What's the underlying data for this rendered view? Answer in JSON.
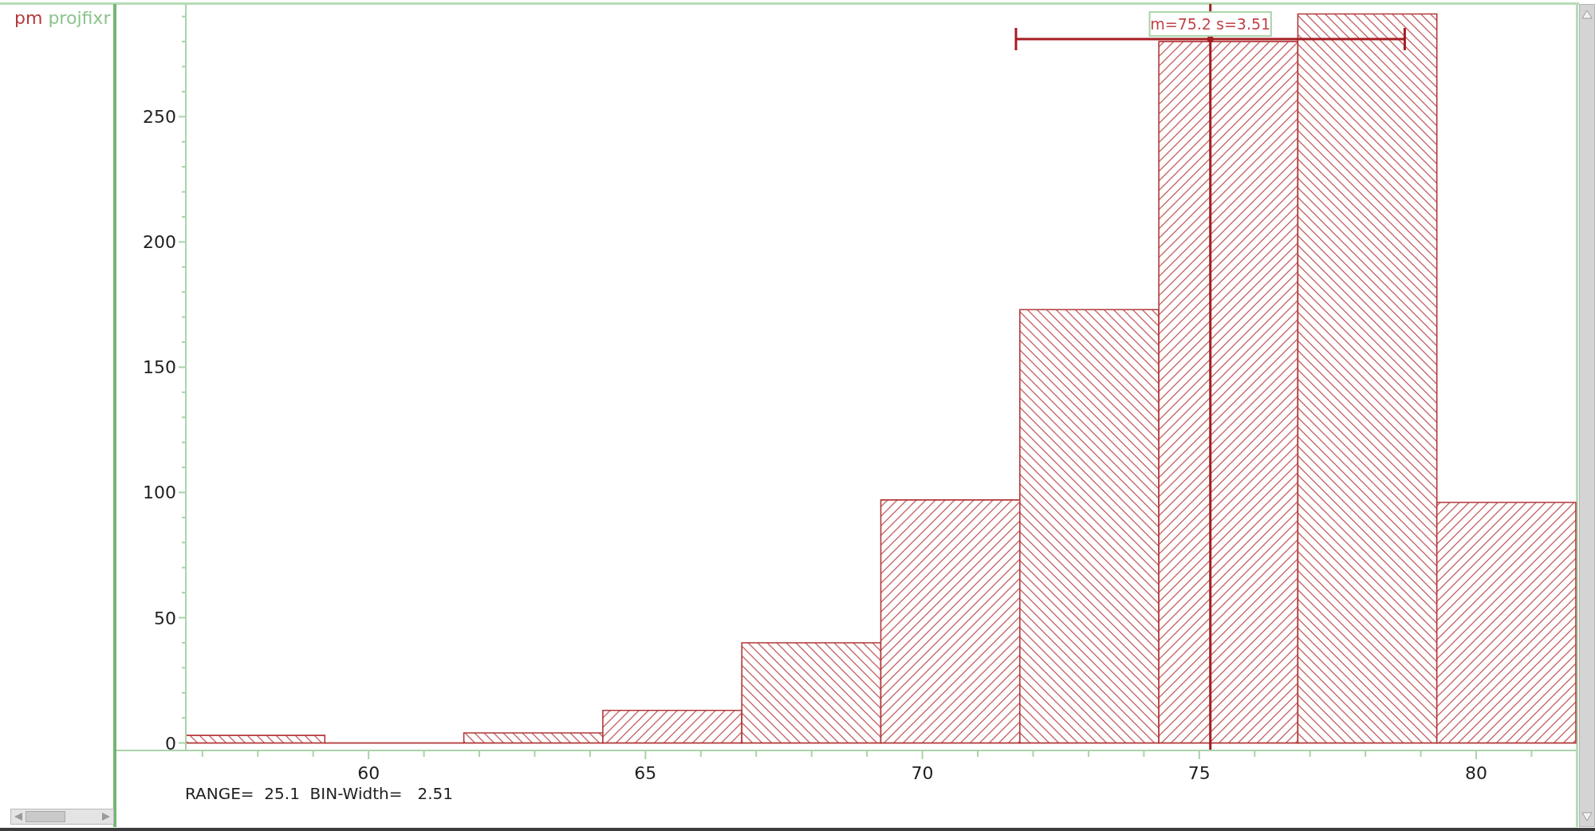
{
  "chart_data": {
    "type": "histogram",
    "bins": [
      56.7,
      59.21,
      61.72,
      64.23,
      66.74,
      69.25,
      71.76,
      74.27,
      76.78,
      79.29,
      81.8
    ],
    "series": [
      {
        "name": "pm",
        "color": "#b3393b",
        "values": [
          3,
          0,
          4,
          13,
          40,
          97,
          173,
          280,
          291,
          96
        ]
      },
      {
        "type": "scatter",
        "x": [
          75.2
        ],
        "values": [
          281
        ],
        "xerrors": [
          3.51
        ],
        "color": "#a51d22",
        "marker": "circle"
      }
    ],
    "legend": "top left",
    "legend_title": "projfixr",
    "xlim": [
      56.7,
      81.8
    ],
    "xticks": [
      {
        "value": 57,
        "label": null
      },
      {
        "value": 58,
        "label": null
      },
      {
        "value": 59,
        "label": null
      },
      60,
      {
        "value": 61,
        "label": null
      },
      {
        "value": 62,
        "label": null
      },
      {
        "value": 63,
        "label": null
      },
      {
        "value": 64,
        "label": null
      },
      65,
      {
        "value": 66,
        "label": null
      },
      {
        "value": 67,
        "label": null
      },
      {
        "value": 68,
        "label": null
      },
      {
        "value": 69,
        "label": null
      },
      70,
      {
        "value": 71,
        "label": null
      },
      {
        "value": 72,
        "label": null
      },
      {
        "value": 73,
        "label": null
      },
      {
        "value": 74,
        "label": null
      },
      75,
      {
        "value": 76,
        "label": null
      },
      {
        "value": 77,
        "label": null
      },
      {
        "value": 78,
        "label": null
      },
      {
        "value": 79,
        "label": null
      },
      80,
      {
        "value": 81,
        "label": null
      }
    ],
    "ylim": [
      -3,
      295
    ],
    "yticks": [
      0,
      {
        "value": 10,
        "label": null
      },
      {
        "value": 20,
        "label": null
      },
      {
        "value": 30,
        "label": null
      },
      {
        "value": 40,
        "label": null
      },
      50,
      {
        "value": 60,
        "label": null
      },
      {
        "value": 70,
        "label": null
      },
      {
        "value": 80,
        "label": null
      },
      {
        "value": 90,
        "label": null
      },
      100,
      {
        "value": 110,
        "label": null
      },
      {
        "value": 120,
        "label": null
      },
      {
        "value": 130,
        "label": null
      },
      {
        "value": 140,
        "label": null
      },
      150,
      {
        "value": 160,
        "label": null
      },
      {
        "value": 170,
        "label": null
      },
      {
        "value": 180,
        "label": null
      },
      {
        "value": 190,
        "label": null
      },
      200,
      {
        "value": 210,
        "label": null
      },
      {
        "value": 220,
        "label": null
      },
      {
        "value": 230,
        "label": null
      },
      {
        "value": 240,
        "label": null
      },
      250,
      {
        "value": 260,
        "label": null
      },
      {
        "value": 270,
        "label": null
      },
      {
        "value": 280,
        "label": null
      },
      {
        "value": 290,
        "label": null
      }
    ],
    "ref_lines": [
      {
        "axis": "x",
        "value": 75.2,
        "color": "#a51d22"
      }
    ],
    "annotations": [
      {
        "text": "m=75.2 s=3.51",
        "x": 75.2,
        "y": 287
      },
      "RANGE=  25.1  BIN-Width=   2.51"
    ]
  }
}
